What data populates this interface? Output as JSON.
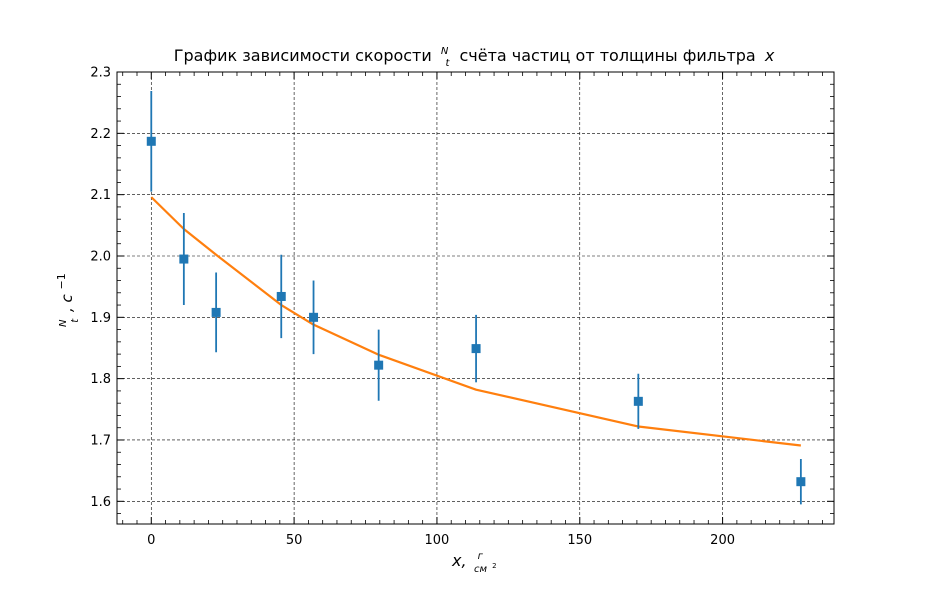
{
  "chart_data": {
    "type": "scatter",
    "title": {
      "prefix": "График зависимости скорости",
      "frac_num": "N",
      "frac_den": "t",
      "suffix": "счёта частиц от толщины фильтра",
      "variable": "x"
    },
    "xlabel": {
      "symbol": "x,",
      "unit_num": "г",
      "unit_den": "см",
      "unit_den_exp": "2"
    },
    "ylabel": {
      "frac_num": "N",
      "frac_den": "t",
      "rest": ", c",
      "exp": "−1"
    },
    "xlim": [
      -12,
      239
    ],
    "ylim": [
      1.563,
      2.3
    ],
    "xticks": [
      0,
      50,
      100,
      150,
      200
    ],
    "xtick_labels": [
      "0",
      "50",
      "100",
      "150",
      "200"
    ],
    "yticks": [
      1.6,
      1.7,
      1.8,
      1.9,
      2.0,
      2.1,
      2.2,
      2.3
    ],
    "ytick_labels": [
      "1.6",
      "1.7",
      "1.8",
      "1.9",
      "2.0",
      "2.1",
      "2.2",
      "2.3"
    ],
    "grid": true,
    "series": [
      {
        "kind": "errorbar",
        "marker": "square",
        "color": "#1f77b4",
        "x": [
          0,
          11.4,
          22.7,
          45.5,
          56.8,
          79.6,
          113.7,
          170.5,
          227.4
        ],
        "y": [
          2.187,
          1.995,
          1.908,
          1.934,
          1.9,
          1.822,
          1.849,
          1.763,
          1.632
        ],
        "yerr": [
          0.082,
          0.075,
          0.065,
          0.068,
          0.06,
          0.058,
          0.055,
          0.045,
          0.037
        ]
      },
      {
        "kind": "line",
        "color": "#ff7f0e",
        "x": [
          0,
          11.4,
          22.7,
          45.5,
          56.8,
          79.6,
          113.7,
          170.5,
          227.4
        ],
        "y": [
          2.096,
          2.044,
          2.002,
          1.92,
          1.888,
          1.839,
          1.782,
          1.722,
          1.691
        ]
      }
    ]
  }
}
